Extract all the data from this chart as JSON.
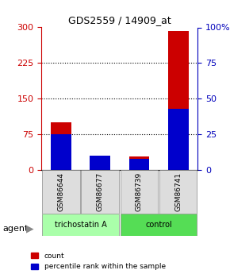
{
  "title": "GDS2559 / 14909_at",
  "samples": [
    "GSM86644",
    "GSM86677",
    "GSM86739",
    "GSM86741"
  ],
  "counts": [
    100,
    30,
    28,
    293
  ],
  "percentiles": [
    25,
    10,
    8,
    43
  ],
  "groups": [
    "trichostatin A",
    "trichostatin A",
    "control",
    "control"
  ],
  "group_colors": {
    "trichostatin A": "#aaffaa",
    "control": "#55dd55"
  },
  "bar_width": 0.35,
  "ylim_left": [
    0,
    300
  ],
  "ylim_right": [
    0,
    100
  ],
  "yticks_left": [
    0,
    75,
    150,
    225,
    300
  ],
  "yticks_right": [
    0,
    25,
    50,
    75,
    100
  ],
  "yticklabels_right": [
    "0",
    "25",
    "50",
    "75",
    "100%"
  ],
  "red_color": "#cc0000",
  "blue_color": "#0000cc",
  "grid_color": "#000000",
  "label_color_left": "#cc0000",
  "label_color_right": "#0000bb",
  "legend_count": "count",
  "legend_percentile": "percentile rank within the sample",
  "agent_label": "agent",
  "box_facecolor": "#dddddd",
  "box_edgecolor": "#888888"
}
